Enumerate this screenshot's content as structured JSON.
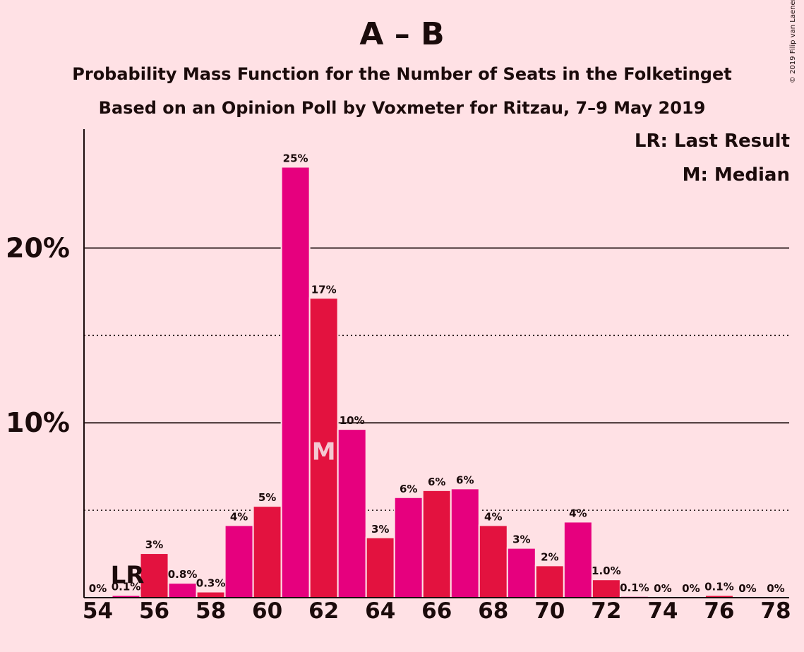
{
  "title": "A – B",
  "subtitle1": "Probability Mass Function for the Number of Seats in the Folketinget",
  "subtitle2": "Based on an Opinion Poll by Voxmeter for Ritzau, 7–9 May 2019",
  "copyright": "© 2019 Filip van Laenen",
  "legend": {
    "last_result": "LR: Last Result",
    "median": "M: Median"
  },
  "colors": {
    "background": "#ffe1e5",
    "bar_a": "#e6007e",
    "bar_b": "#e3123f",
    "text": "#1b0b0b",
    "marker_text": "#f4c9d2"
  },
  "chart_data": {
    "type": "bar",
    "x": [
      54,
      55,
      56,
      57,
      58,
      59,
      60,
      61,
      62,
      63,
      64,
      65,
      66,
      67,
      68,
      69,
      70,
      71,
      72,
      73,
      74,
      75,
      76,
      77,
      78
    ],
    "values": [
      0,
      0.1,
      2.5,
      0.8,
      0.3,
      4.1,
      5.2,
      24.6,
      17.1,
      9.6,
      3.4,
      5.7,
      6.1,
      6.2,
      4.1,
      2.8,
      1.8,
      4.3,
      1.0,
      0.05,
      0,
      0,
      0.1,
      0,
      0
    ],
    "data_labels": [
      "0%",
      "0.1%",
      "3%",
      "0.8%",
      "0.3%",
      "4%",
      "5%",
      "25%",
      "17%",
      "10%",
      "3%",
      "6%",
      "6%",
      "6%",
      "4%",
      "3%",
      "2%",
      "4%",
      "1.0%",
      "0.1%",
      "0%",
      "0%",
      "0.1%",
      "0%",
      "0%"
    ],
    "x_ticks": [
      "54",
      "56",
      "58",
      "60",
      "62",
      "64",
      "66",
      "68",
      "70",
      "72",
      "74",
      "76",
      "78"
    ],
    "y_ticks": [
      {
        "value": 10,
        "label": "10%"
      },
      {
        "value": 20,
        "label": "20%"
      }
    ],
    "minor_gridlines": [
      5,
      15
    ],
    "ylim": [
      0,
      26.8
    ],
    "last_result": {
      "seat": 55,
      "label": "LR"
    },
    "median": {
      "seat": 62,
      "label": "M"
    },
    "xlabel": "",
    "ylabel": ""
  }
}
